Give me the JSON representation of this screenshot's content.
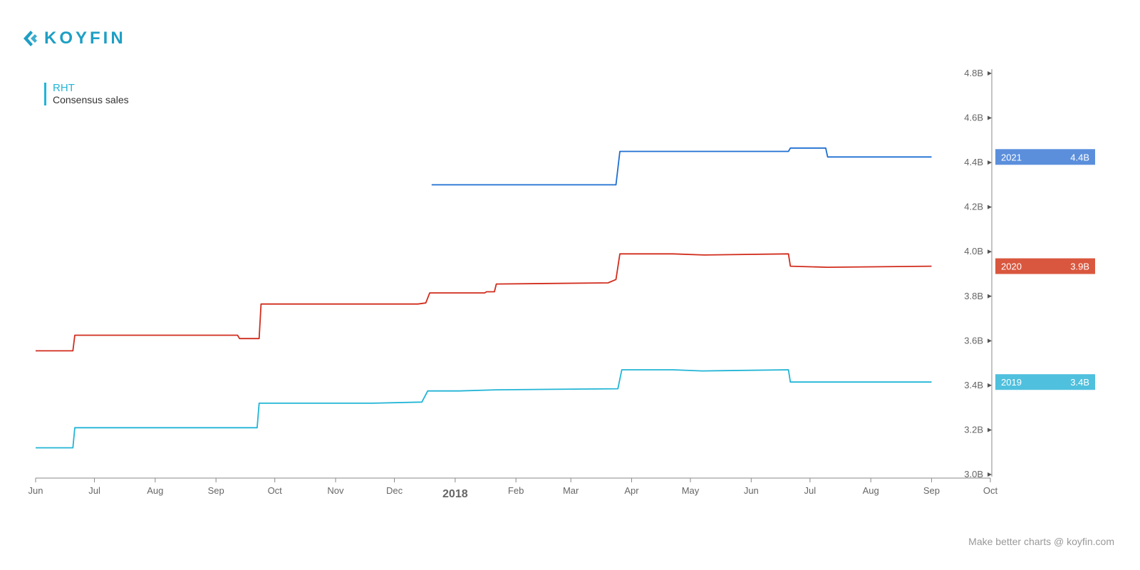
{
  "brand": {
    "logo_text": "KOYFIN",
    "accent": "#1e9fc4"
  },
  "legend": {
    "symbol": "RHT",
    "metric": "Consensus sales",
    "color": "#22b5d6"
  },
  "footer": {
    "text": "Make better charts @ koyfin.com"
  },
  "chart_data": {
    "type": "line",
    "title": "",
    "xlabel": "",
    "ylabel": "",
    "x_range": [
      "2017-06-01",
      "2018-10-01"
    ],
    "ylim": [
      3.0,
      4.8
    ],
    "y_ticks": [
      3.0,
      3.2,
      3.4,
      3.6,
      3.8,
      4.0,
      4.2,
      4.4,
      4.6,
      4.8
    ],
    "y_tick_labels": [
      "3.0B",
      "3.2B",
      "3.4B",
      "3.6B",
      "3.8B",
      "4.0B",
      "4.2B",
      "4.4B",
      "4.6B",
      "4.8B"
    ],
    "x_ticks": [
      {
        "date": "2017-06-01",
        "label": "Jun"
      },
      {
        "date": "2017-07-01",
        "label": "Jul"
      },
      {
        "date": "2017-08-01",
        "label": "Aug"
      },
      {
        "date": "2017-09-01",
        "label": "Sep"
      },
      {
        "date": "2017-10-01",
        "label": "Oct"
      },
      {
        "date": "2017-11-01",
        "label": "Nov"
      },
      {
        "date": "2017-12-01",
        "label": "Dec"
      },
      {
        "date": "2018-01-01",
        "label": "2018",
        "year": true
      },
      {
        "date": "2018-02-01",
        "label": "Feb"
      },
      {
        "date": "2018-03-01",
        "label": "Mar"
      },
      {
        "date": "2018-04-01",
        "label": "Apr"
      },
      {
        "date": "2018-05-01",
        "label": "May"
      },
      {
        "date": "2018-06-01",
        "label": "Jun"
      },
      {
        "date": "2018-07-01",
        "label": "Jul"
      },
      {
        "date": "2018-08-01",
        "label": "Aug"
      },
      {
        "date": "2018-09-01",
        "label": "Sep"
      },
      {
        "date": "2018-10-01",
        "label": "Oct"
      }
    ],
    "grid": false,
    "series": [
      {
        "name": "2019",
        "color": "#22b5d6",
        "badge_color": "#4fc0dd",
        "last_label": "3.4B",
        "points": [
          [
            "2017-06-01",
            3.12
          ],
          [
            "2017-06-20",
            3.12
          ],
          [
            "2017-06-21",
            3.21
          ],
          [
            "2017-08-01",
            3.21
          ],
          [
            "2017-08-20",
            3.21
          ],
          [
            "2017-09-01",
            3.21
          ],
          [
            "2017-09-22",
            3.21
          ],
          [
            "2017-09-23",
            3.32
          ],
          [
            "2017-11-20",
            3.32
          ],
          [
            "2017-12-15",
            3.325
          ],
          [
            "2017-12-18",
            3.375
          ],
          [
            "2018-01-03",
            3.375
          ],
          [
            "2018-01-22",
            3.38
          ],
          [
            "2018-03-25",
            3.385
          ],
          [
            "2018-03-27",
            3.47
          ],
          [
            "2018-04-22",
            3.47
          ],
          [
            "2018-05-07",
            3.465
          ],
          [
            "2018-06-20",
            3.47
          ],
          [
            "2018-06-21",
            3.415
          ],
          [
            "2018-07-10",
            3.415
          ],
          [
            "2018-09-01",
            3.415
          ]
        ]
      },
      {
        "name": "2020",
        "color": "#d12c1c",
        "badge_color": "#d9573e",
        "last_label": "3.9B",
        "points": [
          [
            "2017-06-01",
            3.555
          ],
          [
            "2017-06-20",
            3.555
          ],
          [
            "2017-06-21",
            3.625
          ],
          [
            "2017-09-12",
            3.625
          ],
          [
            "2017-09-13",
            3.61
          ],
          [
            "2017-09-23",
            3.61
          ],
          [
            "2017-09-24",
            3.765
          ],
          [
            "2017-12-13",
            3.765
          ],
          [
            "2017-12-17",
            3.77
          ],
          [
            "2017-12-19",
            3.815
          ],
          [
            "2018-01-16",
            3.815
          ],
          [
            "2018-01-17",
            3.82
          ],
          [
            "2018-01-21",
            3.82
          ],
          [
            "2018-01-22",
            3.855
          ],
          [
            "2018-03-20",
            3.86
          ],
          [
            "2018-03-24",
            3.875
          ],
          [
            "2018-03-26",
            3.99
          ],
          [
            "2018-04-22",
            3.99
          ],
          [
            "2018-05-08",
            3.985
          ],
          [
            "2018-06-20",
            3.99
          ],
          [
            "2018-06-21",
            3.935
          ],
          [
            "2018-07-10",
            3.93
          ],
          [
            "2018-09-01",
            3.935
          ]
        ]
      },
      {
        "name": "2021",
        "color": "#1e6fd0",
        "badge_color": "#5b8fdc",
        "last_label": "4.4B",
        "points": [
          [
            "2017-12-20",
            4.3
          ],
          [
            "2018-03-24",
            4.3
          ],
          [
            "2018-03-26",
            4.45
          ],
          [
            "2018-06-20",
            4.45
          ],
          [
            "2018-06-21",
            4.465
          ],
          [
            "2018-07-09",
            4.465
          ],
          [
            "2018-07-10",
            4.425
          ],
          [
            "2018-09-01",
            4.425
          ]
        ]
      }
    ]
  }
}
